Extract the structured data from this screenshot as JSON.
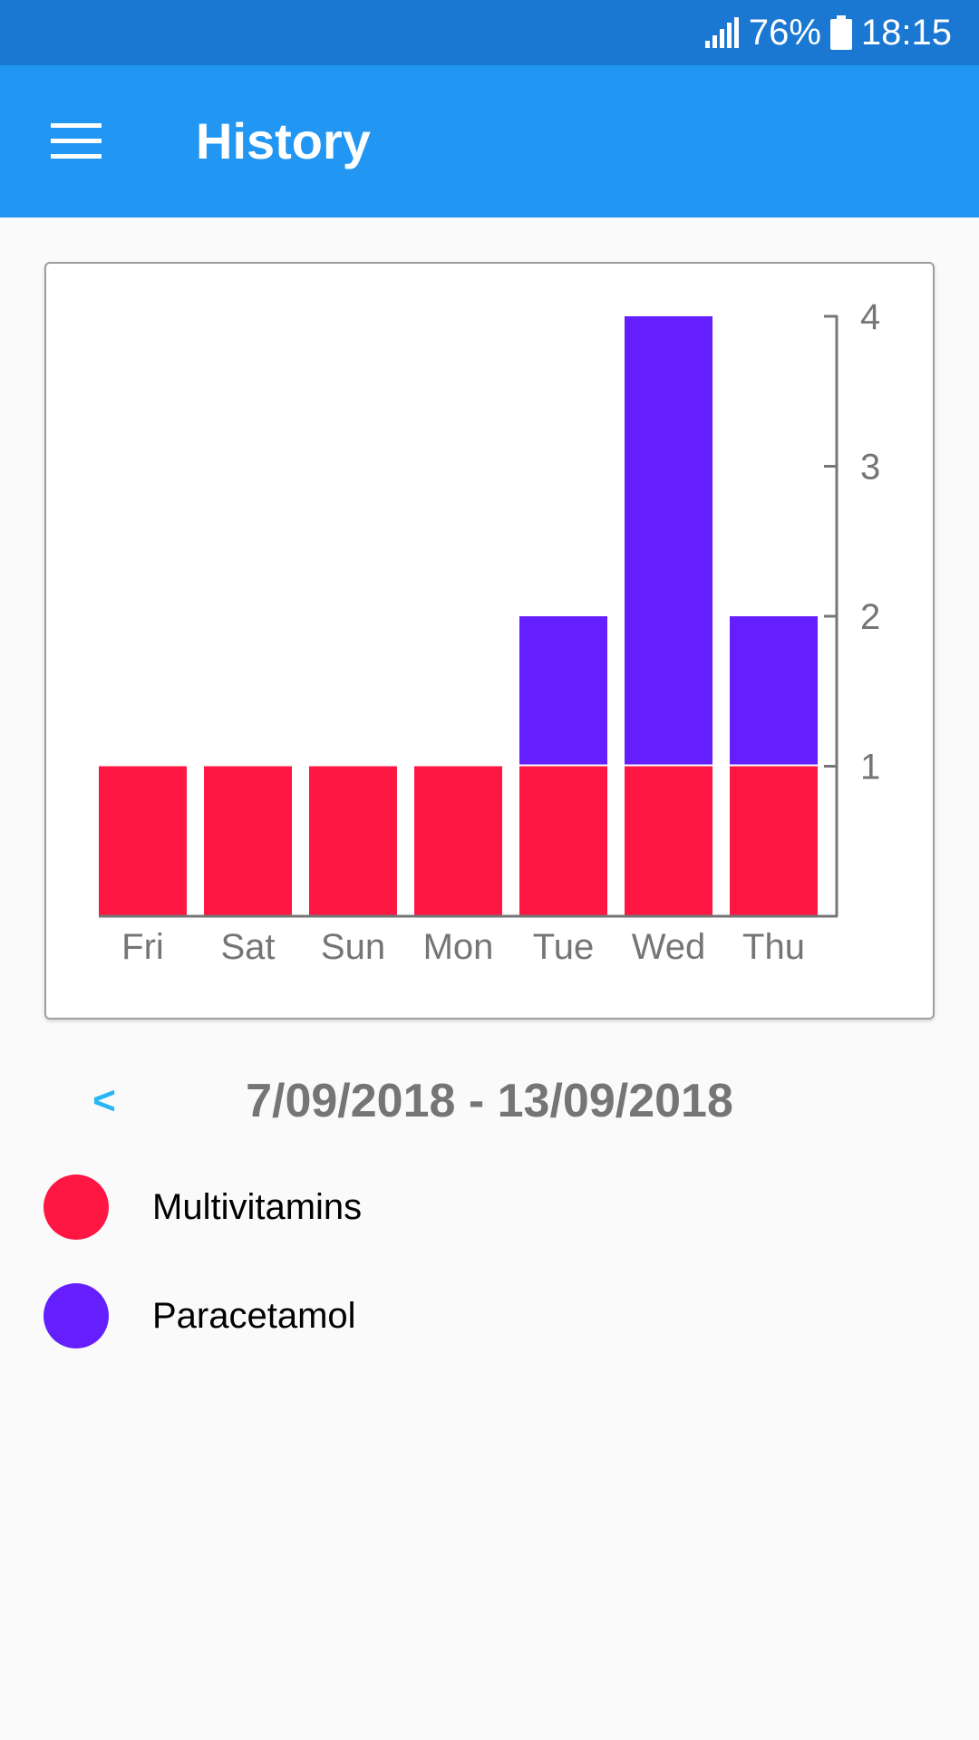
{
  "status_bar": {
    "battery": "76%",
    "time": "18:15",
    "signal_icon": "signal-icon",
    "battery_icon": "battery-icon"
  },
  "app_bar": {
    "title": "History",
    "menu_icon": "menu-icon"
  },
  "date_nav": {
    "prev_label": "<",
    "range": "7/09/2018 - 13/09/2018"
  },
  "legend": [
    {
      "label": "Multivitamins",
      "color": "#ff1744"
    },
    {
      "label": "Paracetamol",
      "color": "#651fff"
    }
  ],
  "chart_data": {
    "type": "bar",
    "stacked": true,
    "categories": [
      "Fri",
      "Sat",
      "Sun",
      "Mon",
      "Tue",
      "Wed",
      "Thu"
    ],
    "series": [
      {
        "name": "Multivitamins",
        "values": [
          1,
          1,
          1,
          1,
          1,
          1,
          1
        ],
        "color": "#ff1744"
      },
      {
        "name": "Paracetamol",
        "values": [
          0,
          0,
          0,
          0,
          1,
          3,
          1
        ],
        "color": "#651fff"
      }
    ],
    "yticks": [
      1,
      2,
      3,
      4
    ],
    "ylim": [
      0,
      4
    ],
    "y_axis_side": "right",
    "title": "",
    "xlabel": "",
    "ylabel": ""
  }
}
